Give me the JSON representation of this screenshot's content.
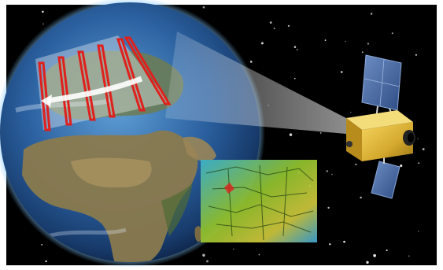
{
  "scene": {
    "subject": "satellite-scanning-earth",
    "colors": {
      "space": "#000000",
      "frame": "#ffffff",
      "ocean": "#1f5fa6",
      "land": "#8a7a4e",
      "atmosphere": "#7fc6ff",
      "scan_lines": "#e0201c",
      "satellite_body": "#d9b53a",
      "solar_panel": "#4a6fa8",
      "map_water": "#3bb0c9",
      "map_land": "#8fbf2d"
    },
    "icons": [
      "earth-icon",
      "satellite-icon",
      "solar-panel-icon",
      "data-map-icon"
    ]
  }
}
